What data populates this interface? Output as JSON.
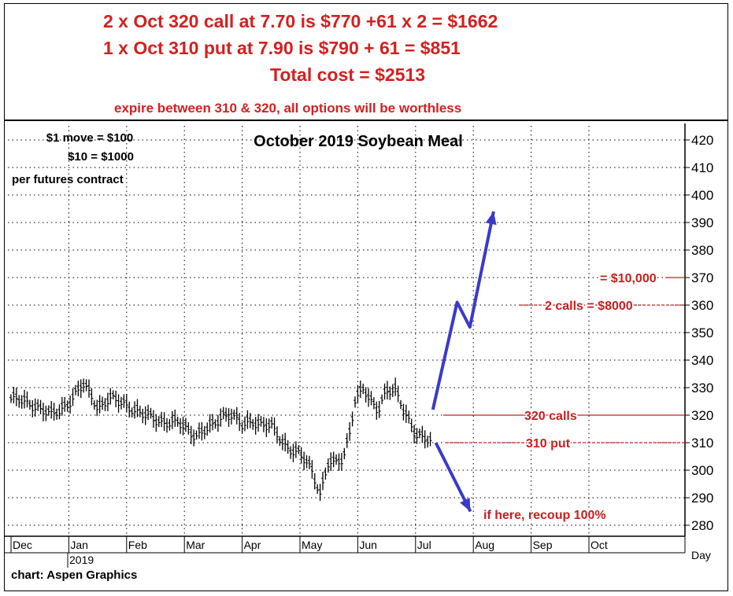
{
  "header": {
    "line1": "2 x Oct 320 call at 7.70 is $770 +61 x 2 = $1662",
    "line2": "1 x Oct 310 put at 7.90 is $790 + 61 = $851",
    "line3": "Total cost = $2513",
    "line4": "expire between 310 & 320, all options will be worthless"
  },
  "notes": {
    "move1": "$1 move = $100",
    "move10": "$10 = $1000",
    "per_contract": "per futures contract"
  },
  "credit": "chart: Aspen Graphics",
  "colors": {
    "header_red": "#d42020",
    "annot_red": "#c81e1e",
    "arrow_blue": "#3a3acb",
    "bars": "#000000"
  },
  "chart_data": {
    "type": "bar",
    "title": "October 2019 Soybean Meal",
    "ylim": [
      275,
      425
    ],
    "y_ticks": [
      280,
      290,
      300,
      310,
      320,
      330,
      340,
      350,
      360,
      370,
      380,
      390,
      400,
      410,
      420
    ],
    "x_labels": [
      "Dec",
      "Jan",
      "Feb",
      "Mar",
      "Apr",
      "May",
      "Jun",
      "Jul",
      "Aug",
      "Sep",
      "Oct"
    ],
    "year_label": "2019",
    "period_label": "Day",
    "grid": true,
    "price_path": [
      {
        "month": 0.0,
        "price": 326
      },
      {
        "month": 0.4,
        "price": 324
      },
      {
        "month": 0.7,
        "price": 320
      },
      {
        "month": 0.85,
        "price": 322
      },
      {
        "month": 1.0,
        "price": 325
      },
      {
        "month": 1.25,
        "price": 331
      },
      {
        "month": 1.4,
        "price": 327
      },
      {
        "month": 1.5,
        "price": 323
      },
      {
        "month": 1.7,
        "price": 326
      },
      {
        "month": 2.0,
        "price": 324
      },
      {
        "month": 2.3,
        "price": 320
      },
      {
        "month": 2.6,
        "price": 318
      },
      {
        "month": 2.9,
        "price": 317
      },
      {
        "month": 3.2,
        "price": 313
      },
      {
        "month": 3.5,
        "price": 316
      },
      {
        "month": 3.65,
        "price": 320
      },
      {
        "month": 3.8,
        "price": 321
      },
      {
        "month": 4.0,
        "price": 316
      },
      {
        "month": 4.2,
        "price": 318
      },
      {
        "month": 4.5,
        "price": 316
      },
      {
        "month": 4.7,
        "price": 310
      },
      {
        "month": 5.0,
        "price": 306
      },
      {
        "month": 5.2,
        "price": 300
      },
      {
        "month": 5.35,
        "price": 292
      },
      {
        "month": 5.5,
        "price": 304
      },
      {
        "month": 5.6,
        "price": 302
      },
      {
        "month": 5.75,
        "price": 304
      },
      {
        "month": 5.85,
        "price": 313
      },
      {
        "month": 5.95,
        "price": 326
      },
      {
        "month": 6.1,
        "price": 330
      },
      {
        "month": 6.2,
        "price": 325
      },
      {
        "month": 6.35,
        "price": 322
      },
      {
        "month": 6.5,
        "price": 330
      },
      {
        "month": 6.65,
        "price": 329
      },
      {
        "month": 6.8,
        "price": 321
      },
      {
        "month": 7.0,
        "price": 314
      },
      {
        "month": 7.15,
        "price": 312
      },
      {
        "month": 7.3,
        "price": 310
      }
    ],
    "projection_up": [
      {
        "month": 7.3,
        "price": 322
      },
      {
        "month": 7.72,
        "price": 361
      },
      {
        "month": 7.94,
        "price": 352
      },
      {
        "month": 8.35,
        "price": 394
      }
    ],
    "projection_down": [
      {
        "month": 7.35,
        "price": 310
      },
      {
        "month": 7.95,
        "price": 285
      }
    ],
    "annotations": [
      {
        "text": "= $10,000",
        "price": 370
      },
      {
        "text": "2 calls = $8000",
        "price": 360
      },
      {
        "text": "320 calls",
        "price": 320
      },
      {
        "text": "310 put",
        "price": 310
      },
      {
        "text": "if here, recoup 100%",
        "price": 284
      }
    ]
  }
}
